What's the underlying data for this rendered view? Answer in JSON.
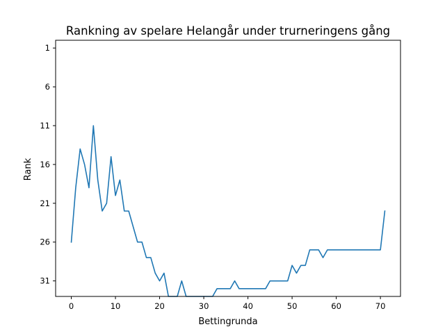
{
  "chart_data": {
    "type": "line",
    "title": "Rankning av spelare Helangår under trurneringens gång",
    "xlabel": "Bettingrunda",
    "ylabel": "Rank",
    "xlim": [
      -3.55,
      74.55
    ],
    "ylim": [
      33,
      0
    ],
    "y_inverted": true,
    "grid": false,
    "x_ticks": [
      0,
      10,
      20,
      30,
      40,
      50,
      60,
      70
    ],
    "y_ticks": [
      1,
      6,
      11,
      16,
      21,
      26,
      31
    ],
    "line_color": "#1f77b4",
    "x": [
      0,
      1,
      2,
      3,
      4,
      5,
      6,
      7,
      8,
      9,
      10,
      11,
      12,
      13,
      14,
      15,
      16,
      17,
      18,
      19,
      20,
      21,
      22,
      23,
      24,
      25,
      26,
      27,
      28,
      29,
      30,
      31,
      32,
      33,
      34,
      35,
      36,
      37,
      38,
      39,
      40,
      41,
      42,
      43,
      44,
      45,
      46,
      47,
      48,
      49,
      50,
      51,
      52,
      53,
      54,
      55,
      56,
      57,
      58,
      59,
      60,
      61,
      62,
      63,
      64,
      65,
      66,
      67,
      68,
      69,
      70,
      71
    ],
    "y": [
      26,
      19,
      14,
      16,
      19,
      11,
      18,
      22,
      21,
      15,
      20,
      18,
      22,
      22,
      24,
      26,
      26,
      28,
      28,
      30,
      31,
      30,
      33,
      33,
      33,
      31,
      33,
      33,
      33,
      33,
      33,
      33,
      33,
      32,
      32,
      32,
      32,
      31,
      32,
      32,
      32,
      32,
      32,
      32,
      32,
      31,
      31,
      31,
      31,
      31,
      29,
      30,
      29,
      29,
      27,
      27,
      27,
      28,
      27,
      27,
      27,
      27,
      27,
      27,
      27,
      27,
      27,
      27,
      27,
      27,
      27,
      22
    ]
  }
}
